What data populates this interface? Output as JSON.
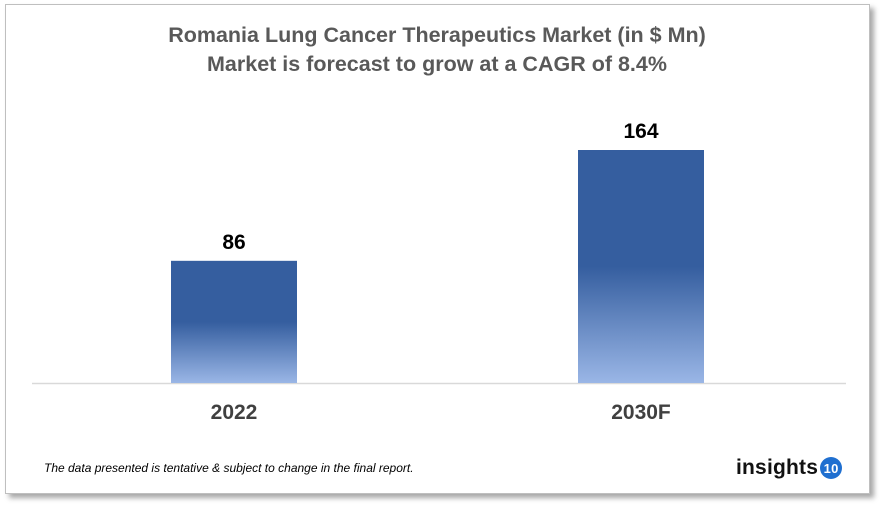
{
  "chart_data": {
    "type": "bar",
    "title": "Romania Lung Cancer Therapeutics Market (in $ Mn)",
    "subtitle": "Market is forecast to grow at a CAGR of 8.4%",
    "categories": [
      "2022",
      "2030F"
    ],
    "values": [
      86,
      164
    ],
    "data_labels": [
      "86",
      "164"
    ],
    "xlabel": "",
    "ylabel": "",
    "ylim": [
      0,
      164
    ],
    "grid": false,
    "legend": "none",
    "bar_color_top": "#355e9f",
    "bar_color_bottom": "#9ab6e6"
  },
  "footer": {
    "note": "The data presented is tentative & subject to change in the final report.",
    "logo_text": "insights",
    "logo_number": "10"
  }
}
